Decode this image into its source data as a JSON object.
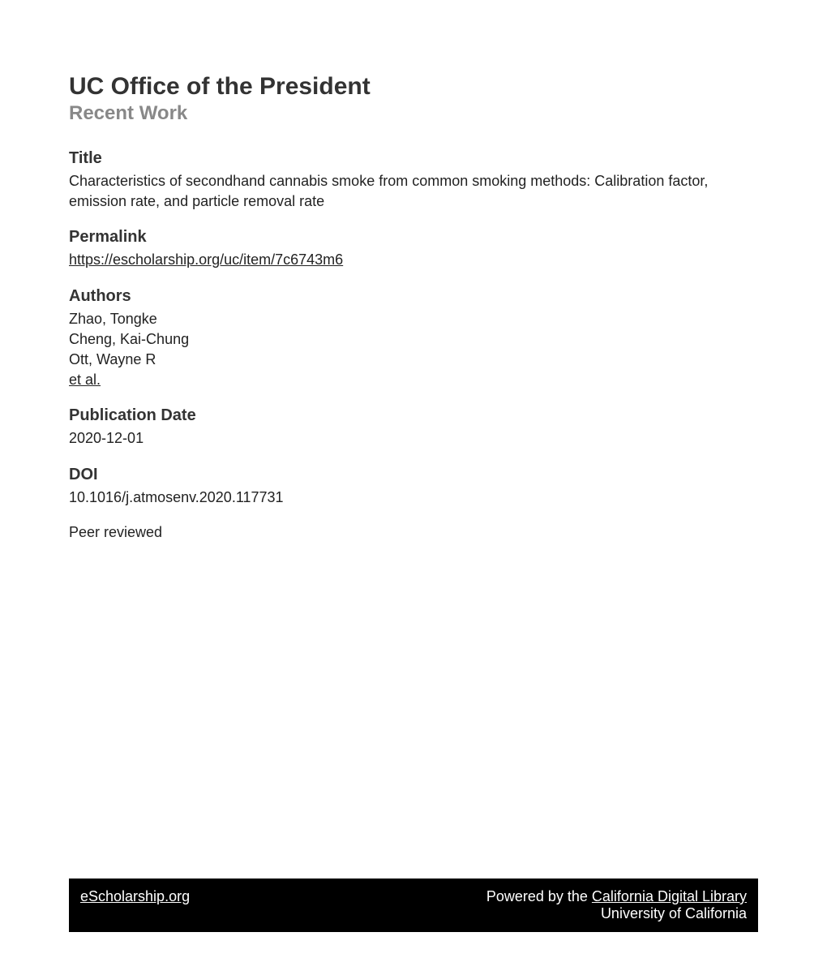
{
  "header": {
    "main_heading": "UC Office of the President",
    "sub_heading": "Recent Work"
  },
  "sections": {
    "title": {
      "label": "Title",
      "text": "Characteristics of secondhand cannabis smoke from common smoking methods: Calibration factor, emission rate, and particle removal rate"
    },
    "permalink": {
      "label": "Permalink",
      "url": "https://escholarship.org/uc/item/7c6743m6"
    },
    "authors": {
      "label": "Authors",
      "list": [
        "Zhao, Tongke",
        "Cheng, Kai-Chung",
        "Ott, Wayne R"
      ],
      "et_al": "et al."
    },
    "publication_date": {
      "label": "Publication Date",
      "value": "2020-12-01"
    },
    "doi": {
      "label": "DOI",
      "value": "10.1016/j.atmosenv.2020.117731"
    },
    "peer_reviewed": "Peer reviewed"
  },
  "footer": {
    "site_link": "eScholarship.org",
    "powered_by_prefix": "Powered by the ",
    "powered_by_link": "California Digital Library",
    "institution": "University of California"
  },
  "colors": {
    "heading_dark": "#333333",
    "heading_gray": "#888888",
    "text": "#222222",
    "footer_bg": "#000000",
    "footer_text": "#ffffff",
    "background": "#ffffff"
  }
}
